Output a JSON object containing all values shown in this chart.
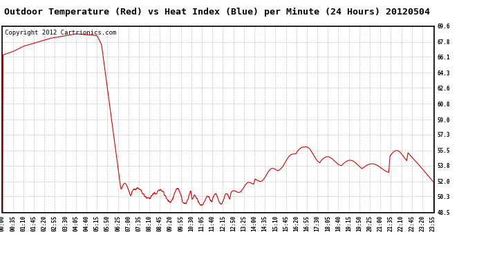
{
  "title": "Outdoor Temperature (Red) vs Heat Index (Blue) per Minute (24 Hours) 20120504",
  "copyright_text": "Copyright 2012 Cartrionics.com",
  "y_min": 48.5,
  "y_max": 69.6,
  "y_ticks": [
    48.5,
    50.3,
    52.0,
    53.8,
    55.5,
    57.3,
    59.0,
    60.8,
    62.6,
    64.3,
    66.1,
    67.8,
    69.6
  ],
  "line_color": "#cc0000",
  "background_color": "#ffffff",
  "grid_color": "#bbbbbb",
  "title_fontsize": 9.5,
  "copyright_fontsize": 6.5,
  "axis_fontsize": 5.5,
  "x_tick_labels": [
    "00:00",
    "00:35",
    "01:10",
    "01:45",
    "02:20",
    "02:55",
    "03:30",
    "04:05",
    "04:40",
    "05:15",
    "05:50",
    "06:25",
    "07:00",
    "07:35",
    "08:10",
    "08:45",
    "09:20",
    "09:55",
    "10:30",
    "11:05",
    "11:40",
    "12:15",
    "12:50",
    "13:25",
    "14:00",
    "14:35",
    "15:10",
    "15:45",
    "16:20",
    "16:55",
    "17:30",
    "18:05",
    "18:40",
    "19:15",
    "19:50",
    "20:25",
    "21:00",
    "21:35",
    "22:10",
    "22:45",
    "23:20",
    "23:55"
  ]
}
